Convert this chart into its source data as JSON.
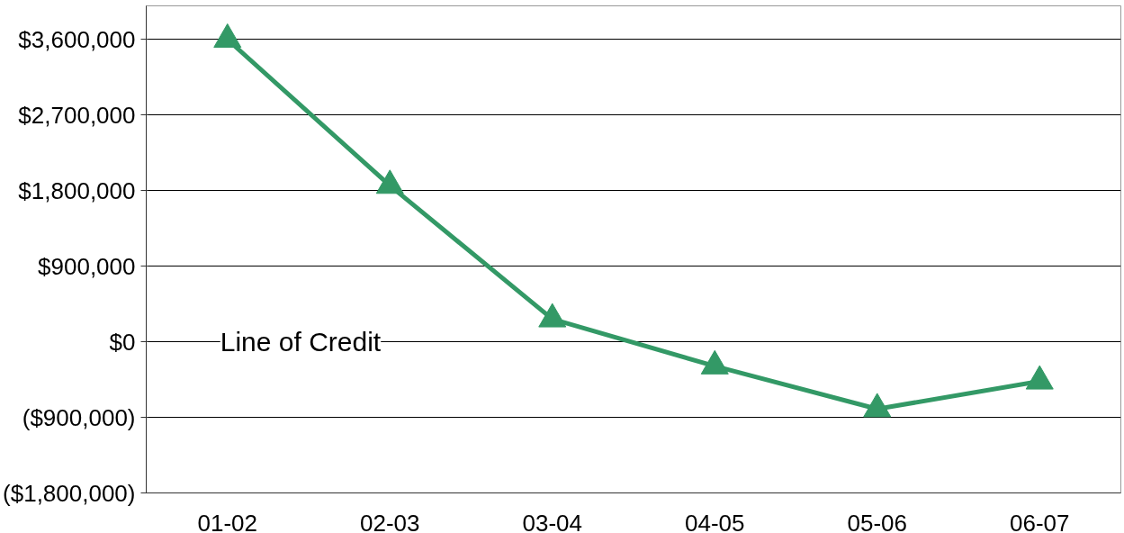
{
  "chart_data": {
    "type": "line",
    "categories": [
      "01-02",
      "02-03",
      "03-04",
      "04-05",
      "05-06",
      "06-07"
    ],
    "series": [
      {
        "color": "#339966",
        "values": [
          3600000,
          1860000,
          270000,
          -290000,
          -800000,
          -470000
        ]
      }
    ],
    "annotations": [
      "Line of Credit"
    ],
    "marker": "triangle",
    "line_style": "solid",
    "ylim": [
      -1800000,
      4000000
    ],
    "yticks": [
      {
        "value": -1800000,
        "label": "($1,800,000)"
      },
      {
        "value": -900000,
        "label": "($900,000)"
      },
      {
        "value": 0,
        "label": "$0"
      },
      {
        "value": 900000,
        "label": "$900,000"
      },
      {
        "value": 1800000,
        "label": "$1,800,000"
      },
      {
        "value": 2700000,
        "label": "$2,700,000"
      },
      {
        "value": 3600000,
        "label": "$3,600,000"
      }
    ],
    "grid": "y"
  }
}
